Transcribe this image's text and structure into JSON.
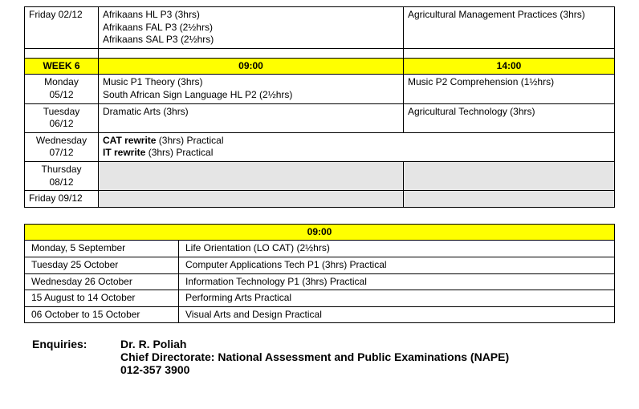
{
  "week5_last": {
    "day": "Friday 02/12",
    "morning_lines": [
      "Afrikaans HL P3 (3hrs)",
      "Afrikaans FAL P3 (2½hrs)",
      "Afrikaans SAL P3 (2½hrs)"
    ],
    "afternoon": "Agricultural Management Practices (3hrs)"
  },
  "week6": {
    "label": "WEEK 6",
    "time_am": "09:00",
    "time_pm": "14:00",
    "rows": [
      {
        "day_l1": "Monday",
        "day_l2": "05/12",
        "morning_lines": [
          "Music P1 Theory (3hrs)",
          "South African Sign Language HL P2 (2½hrs)"
        ],
        "afternoon": "Music P2 Comprehension (1½hrs)"
      },
      {
        "day_l1": "Tuesday",
        "day_l2": "06/12",
        "morning_lines": [
          "Dramatic Arts (3hrs)"
        ],
        "afternoon": "Agricultural Technology (3hrs)"
      },
      {
        "day_l1": "Wednesday",
        "day_l2": "07/12",
        "morning_bold": [
          "CAT rewrite",
          "IT rewrite"
        ],
        "morning_plain": [
          " (3hrs) Practical",
          " (3hrs) Practical"
        ]
      },
      {
        "day_l1": "Thursday",
        "day_l2": "08/12",
        "grey": true
      },
      {
        "day_l1": "Friday 09/12",
        "grey": true,
        "thin": true
      }
    ]
  },
  "bottom": {
    "header": "09:00",
    "rows": [
      {
        "date": "Monday, 5 September",
        "text": "Life Orientation (LO CAT) (2½hrs)"
      },
      {
        "date": "Tuesday 25 October",
        "text": "Computer Applications Tech P1 (3hrs) Practical"
      },
      {
        "date": "Wednesday 26 October",
        "text": "Information Technology P1 (3hrs) Practical"
      },
      {
        "date": "15 August to 14 October",
        "text": "Performing Arts Practical"
      },
      {
        "date": "06 October to 15 October",
        "text": "Visual Arts and Design Practical"
      }
    ]
  },
  "enquiries": {
    "label": "Enquiries:",
    "line1": "Dr. R. Poliah",
    "line2": "Chief Directorate: National Assessment and Public Examinations (NAPE)",
    "line3": "012-357 3900"
  },
  "colors": {
    "highlight": "#ffff00",
    "grey_fill": "#e5e5e5",
    "page_bg": "#ffffff",
    "outer_bg": "#3a3a3a",
    "border": "#000000"
  }
}
